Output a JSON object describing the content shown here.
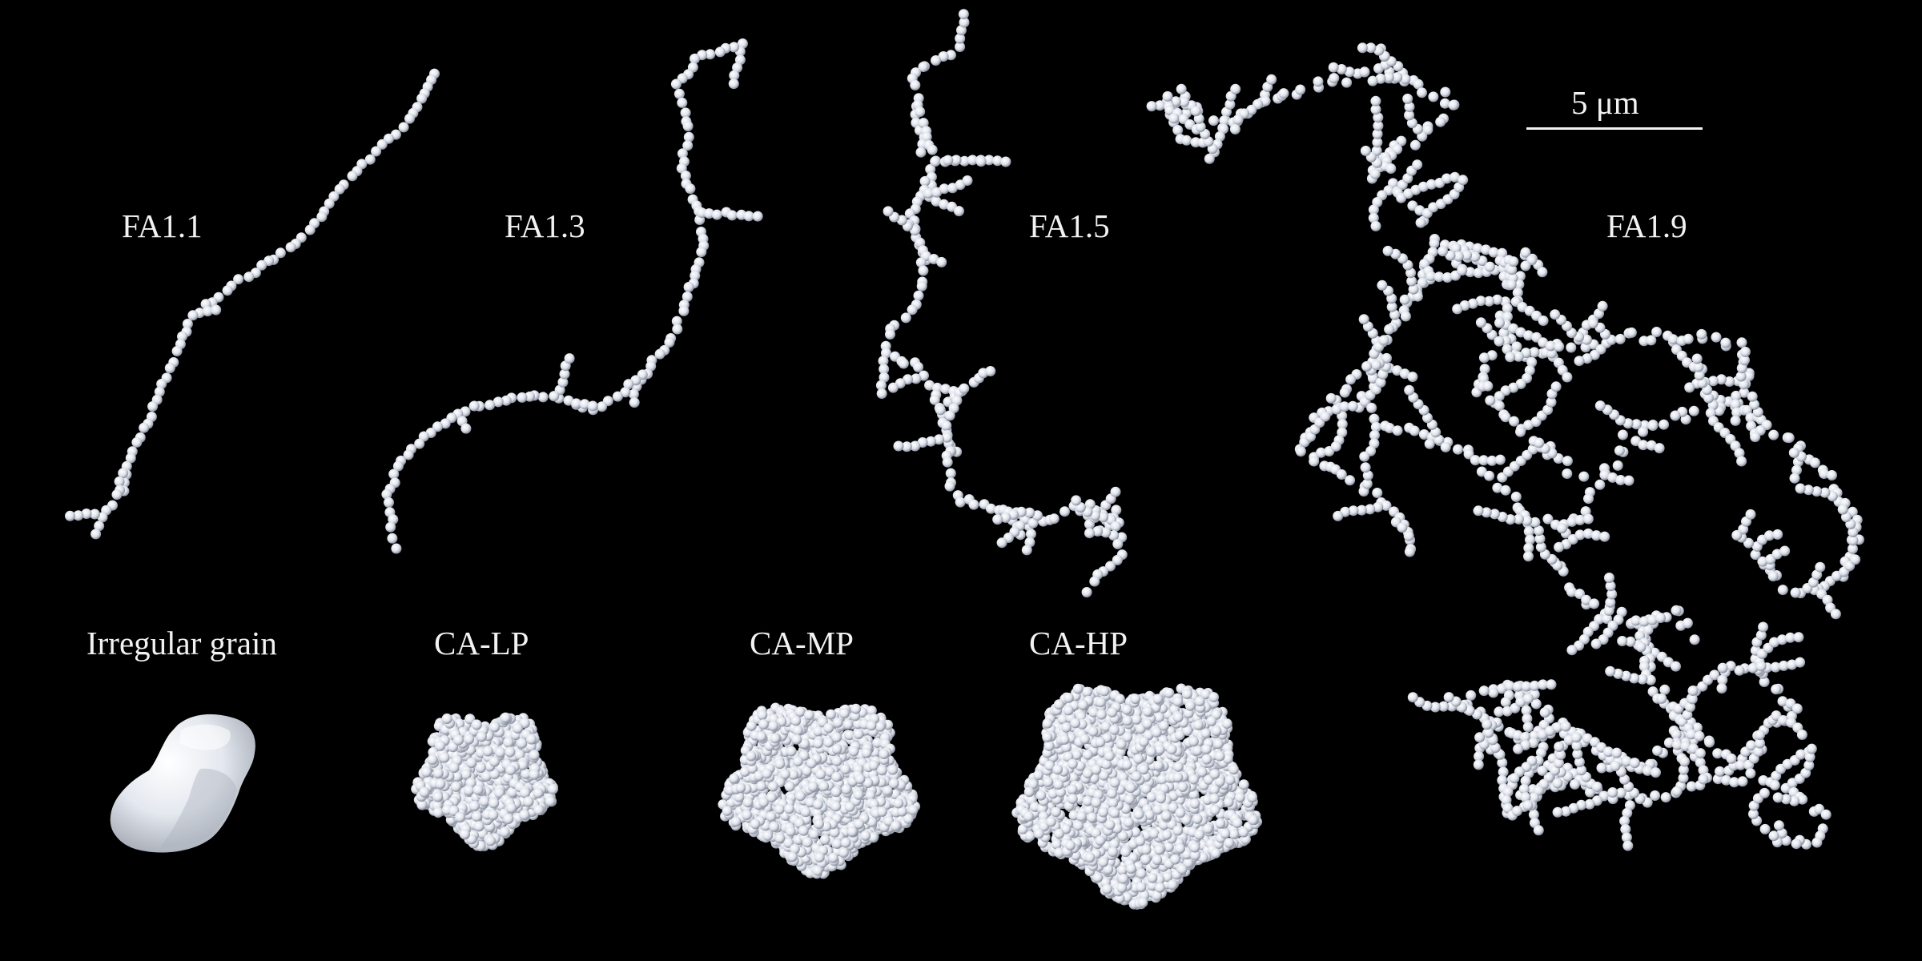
{
  "figure": {
    "background": "#000000",
    "particle_color": "#e8ecf4",
    "labels": {
      "fa11": "FA1.1",
      "fa13": "FA1.3",
      "fa15": "FA1.5",
      "fa19": "FA1.9",
      "irregular": "Irregular grain",
      "calp": "CA-LP",
      "camp": "CA-MP",
      "cahp": "CA-HP"
    },
    "scale_bar": {
      "text": "5 μm"
    },
    "aggregates": [
      {
        "id": "fa11",
        "type": "fractal",
        "fractal_dimension": 1.1
      },
      {
        "id": "fa13",
        "type": "fractal",
        "fractal_dimension": 1.3
      },
      {
        "id": "fa15",
        "type": "fractal",
        "fractal_dimension": 1.5
      },
      {
        "id": "fa19",
        "type": "fractal",
        "fractal_dimension": 1.9
      },
      {
        "id": "irregular",
        "type": "solid-grain"
      },
      {
        "id": "calp",
        "type": "compact",
        "porosity": "low"
      },
      {
        "id": "camp",
        "type": "compact",
        "porosity": "medium"
      },
      {
        "id": "cahp",
        "type": "compact",
        "porosity": "high"
      }
    ]
  }
}
